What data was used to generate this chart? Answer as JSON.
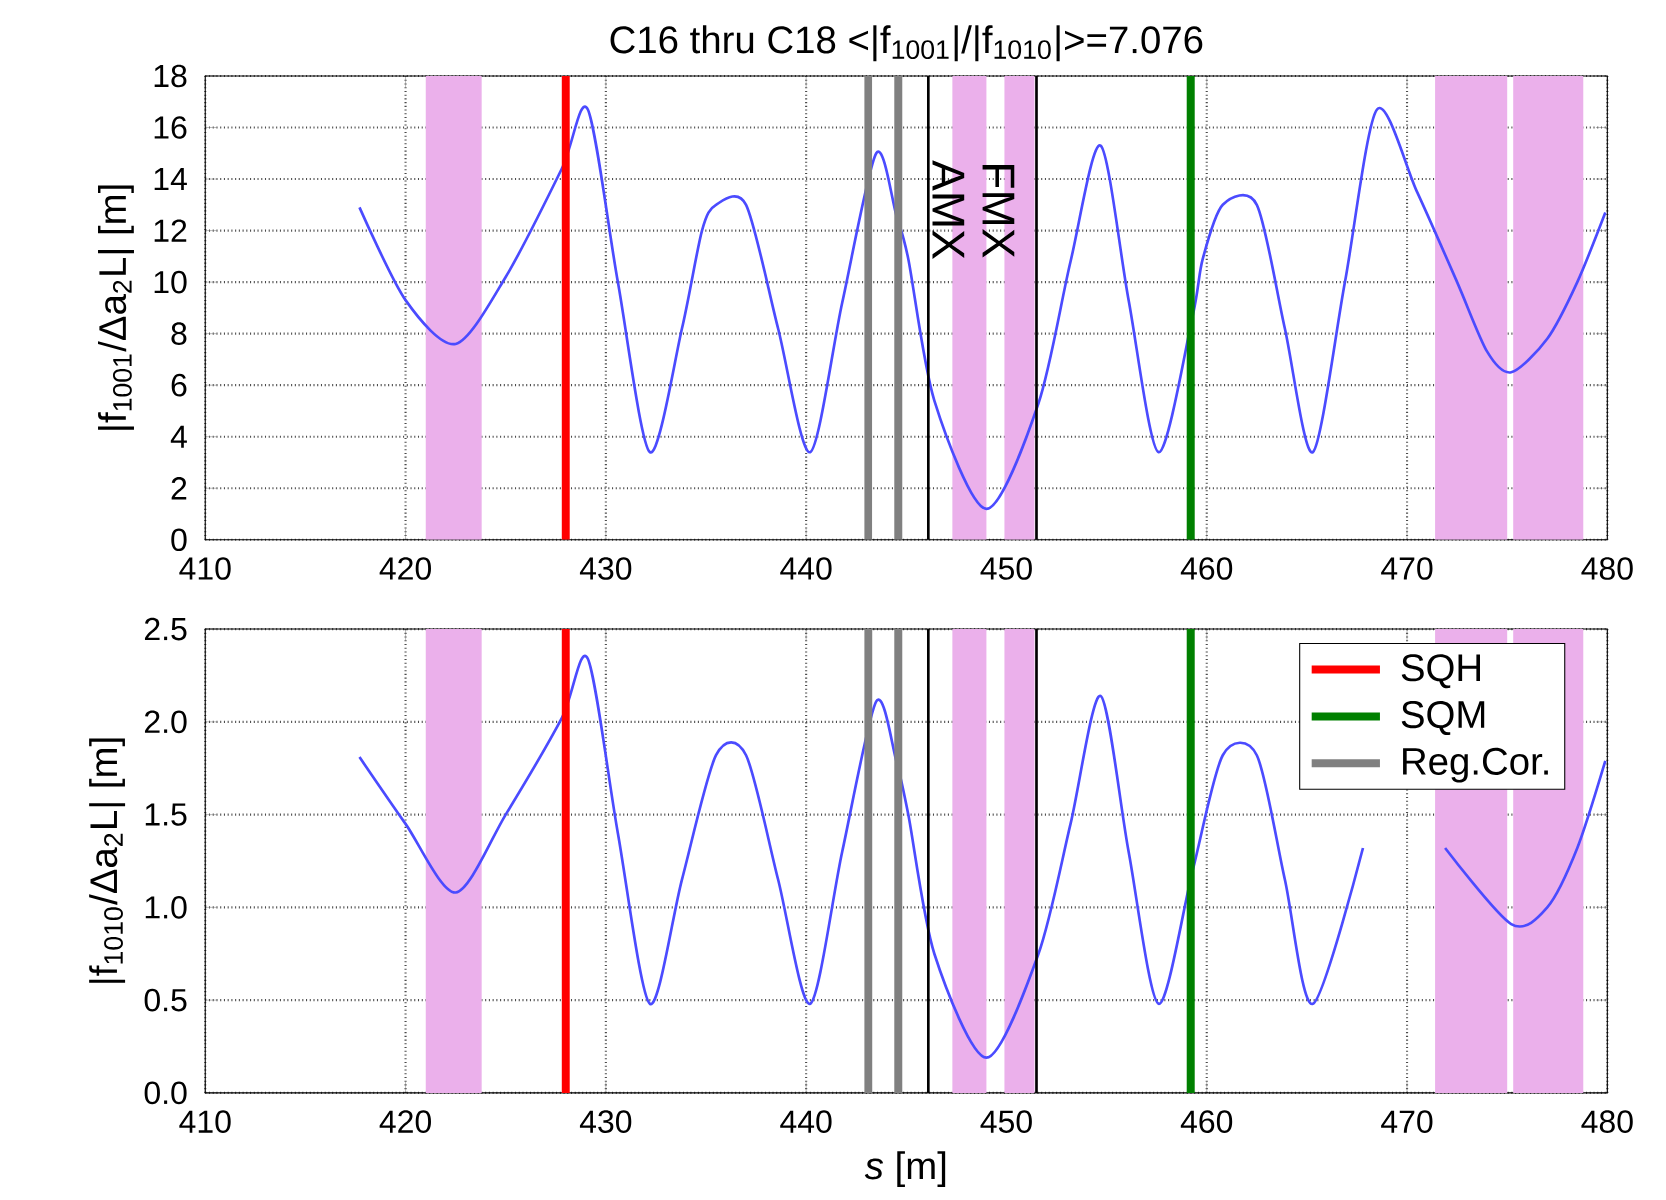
{
  "chart_data": [
    {
      "type": "line",
      "title": "C16 thru C18 <|f$_{1001}$|/|f$_{1010}$|>=7.076",
      "ylabel": "|f$_{1001}$/Δa$_{2}$L| [m]",
      "xlim": [
        410,
        480
      ],
      "xticks": [
        410,
        420,
        430,
        440,
        450,
        460,
        470,
        480
      ],
      "ylim": [
        0,
        18
      ],
      "yticks": [
        0,
        2,
        4,
        6,
        8,
        10,
        12,
        14,
        16,
        18
      ],
      "grid": true,
      "series": [
        {
          "color": "#4b4bff",
          "x": [
            417.7,
            420,
            422.5,
            425,
            427.8,
            429.1,
            430.6,
            432.2,
            433.8,
            434.8,
            435.5,
            437.0,
            438.6,
            440.2,
            441.8,
            443.5,
            444.5,
            445.1,
            446.4,
            449.0,
            451.6,
            453.2,
            454.7,
            456.1,
            457.6,
            459.3,
            459.8,
            460.8,
            462.5,
            463.9,
            465.3,
            466.9,
            468.5,
            470.5,
            472.5,
            474.0,
            475.2,
            477.0,
            478.5,
            479.9
          ],
          "values": [
            12.9,
            9.3,
            7.6,
            10.2,
            14.4,
            16.7,
            10.0,
            3.4,
            8.2,
            12.0,
            13.0,
            13.0,
            8.2,
            3.4,
            9.2,
            15.0,
            12.6,
            10.9,
            5.4,
            1.2,
            5.3,
            10.8,
            15.3,
            9.3,
            3.4,
            8.7,
            10.9,
            13.0,
            13.0,
            8.2,
            3.4,
            10.0,
            16.7,
            13.5,
            10.0,
            7.3,
            6.5,
            7.8,
            10.0,
            12.7
          ]
        }
      ],
      "bands": [
        {
          "axis": "x",
          "from": 421.0,
          "to": 423.8,
          "color": "#ebb0eb"
        },
        {
          "axis": "x",
          "from": 447.3,
          "to": 449.0,
          "color": "#ebb0eb"
        },
        {
          "axis": "x",
          "from": 449.9,
          "to": 451.4,
          "color": "#ebb0eb"
        },
        {
          "axis": "x",
          "from": 471.4,
          "to": 475.0,
          "color": "#ebb0eb"
        },
        {
          "axis": "x",
          "from": 475.3,
          "to": 478.8,
          "color": "#ebb0eb"
        }
      ],
      "ref_lines": [
        {
          "axis": "x",
          "value": 428.0,
          "color": "#ff0000"
        },
        {
          "axis": "x",
          "value": 459.2,
          "color": "#008000"
        },
        {
          "axis": "x",
          "value": 443.1,
          "color": "#808080"
        },
        {
          "axis": "x",
          "value": 444.6,
          "color": "#808080"
        },
        {
          "axis": "x",
          "value": 446.1,
          "color": "#000000"
        },
        {
          "axis": "x",
          "value": 451.5,
          "color": "#000000"
        }
      ],
      "annotations": [
        {
          "text": "AMX",
          "x": 447.1,
          "y": 12.8
        },
        {
          "text": "FMX",
          "x": 449.6,
          "y": 12.8
        }
      ]
    },
    {
      "type": "line",
      "xlabel": "*s* [m]",
      "ylabel": "|f$_{1010}$/Δa$_{2}$L| [m]",
      "xlim": [
        410,
        480
      ],
      "xticks": [
        410,
        420,
        430,
        440,
        450,
        460,
        470,
        480
      ],
      "ylim": [
        0,
        2.5
      ],
      "yticks": [
        {
          "value": 0,
          "label": "0.0"
        },
        0.5,
        {
          "value": 1,
          "label": "1.0"
        },
        1.5,
        {
          "value": 2,
          "label": "2.0"
        },
        2.5
      ],
      "grid": true,
      "legend": "top right",
      "series": [
        {
          "color": "#4b4bff",
          "x": [
            417.7,
            420,
            422.5,
            425,
            427.8,
            429.1,
            430.6,
            432.2,
            433.8,
            435.5,
            437.0,
            438.6,
            440.2,
            441.8,
            443.5,
            444.5,
            445.1,
            446.4,
            449.0,
            451.6,
            453.2,
            454.7,
            456.1,
            457.6,
            459.3,
            460.8,
            462.5,
            463.9,
            465.3,
            467.8,
            468.5,
            471.9,
            475.2,
            477.0,
            478.5,
            479.9
          ],
          "values": [
            1.81,
            1.45,
            1.08,
            1.5,
            2.02,
            2.34,
            1.4,
            0.48,
            1.15,
            1.82,
            1.82,
            1.15,
            0.48,
            1.3,
            2.11,
            1.79,
            1.5,
            0.75,
            0.19,
            0.75,
            1.45,
            2.14,
            1.3,
            0.48,
            1.2,
            1.82,
            1.82,
            1.15,
            0.48,
            1.32,
            null,
            1.32,
            0.91,
            1.0,
            1.32,
            1.79
          ]
        },
        {
          "name": "SQH",
          "color": "#ff0000",
          "x": [
            428.0,
            428.0
          ],
          "values": [
            0,
            2.5
          ]
        },
        {
          "name": "SQM",
          "color": "#008000",
          "x": [
            459.2,
            459.2
          ],
          "values": [
            0,
            2.5
          ]
        },
        {
          "name": "Reg.Cor.",
          "color": "#808080",
          "x": [
            443.1,
            443.1,
            443.8,
            444.6,
            444.6
          ],
          "values": [
            0,
            2.5,
            null,
            0,
            2.5
          ]
        }
      ],
      "bands": [
        {
          "axis": "x",
          "from": 421.0,
          "to": 423.8,
          "color": "#ebb0eb"
        },
        {
          "axis": "x",
          "from": 447.3,
          "to": 449.0,
          "color": "#ebb0eb"
        },
        {
          "axis": "x",
          "from": 449.9,
          "to": 451.4,
          "color": "#ebb0eb"
        },
        {
          "axis": "x",
          "from": 471.4,
          "to": 475.0,
          "color": "#ebb0eb"
        },
        {
          "axis": "x",
          "from": 475.3,
          "to": 478.8,
          "color": "#ebb0eb"
        }
      ],
      "ref_lines": [
        {
          "axis": "x",
          "value": 446.1,
          "color": "#000000"
        },
        {
          "axis": "x",
          "value": 451.5,
          "color": "#000000"
        }
      ]
    }
  ]
}
